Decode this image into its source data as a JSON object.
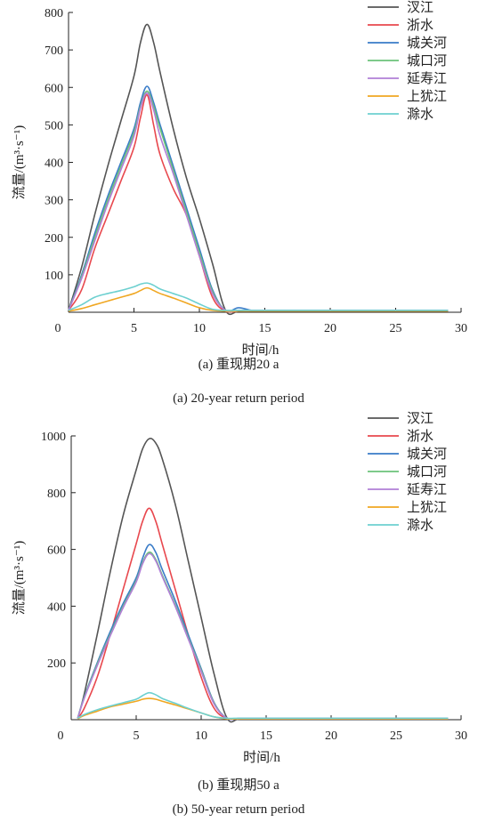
{
  "chart_data": [
    {
      "type": "line",
      "xlabel": "时间/h",
      "ylabel": "流量/(m³·s⁻¹)",
      "xlim": [
        0,
        30
      ],
      "ylim": [
        0,
        800
      ],
      "xticks": [
        "0",
        "5",
        "10",
        "15",
        "20",
        "25",
        "30"
      ],
      "yticks": [
        "100",
        "200",
        "300",
        "400",
        "500",
        "600",
        "700",
        "800"
      ],
      "legend_position": "top-right",
      "caption_cn": "(a) 重现期20 a",
      "caption_en": "(a) 20-year return period",
      "series": [
        {
          "name": "汊江",
          "color": "#555555",
          "x": [
            0,
            1,
            2,
            3,
            4,
            5,
            5.5,
            6,
            6.5,
            7,
            8,
            9,
            10,
            11,
            12,
            13,
            14,
            15,
            20,
            25,
            29
          ],
          "y": [
            5,
            120,
            260,
            390,
            510,
            630,
            720,
            768,
            720,
            640,
            490,
            360,
            250,
            130,
            5,
            3,
            3,
            3,
            3,
            3,
            3
          ]
        },
        {
          "name": "浙水",
          "color": "#e8484e",
          "x": [
            0,
            1,
            2,
            3,
            4,
            5,
            5.5,
            6,
            6.5,
            7,
            8,
            9,
            10,
            11,
            12,
            13,
            14,
            15,
            20,
            25,
            29
          ],
          "y": [
            5,
            60,
            170,
            260,
            350,
            440,
            520,
            580,
            500,
            420,
            330,
            260,
            150,
            40,
            3,
            3,
            3,
            3,
            3,
            3,
            3
          ]
        },
        {
          "name": "城关河",
          "color": "#3a7cc8",
          "x": [
            0,
            1,
            2,
            3,
            4,
            5,
            5.5,
            6,
            6.5,
            7,
            8,
            9,
            10,
            11,
            12,
            13,
            14,
            15,
            20,
            25,
            29
          ],
          "y": [
            5,
            100,
            210,
            310,
            400,
            490,
            560,
            603,
            560,
            500,
            390,
            280,
            170,
            60,
            5,
            12,
            5,
            5,
            5,
            5,
            5
          ]
        },
        {
          "name": "城口河",
          "color": "#6cc27a",
          "x": [
            0,
            1,
            2,
            3,
            4,
            5,
            5.5,
            6,
            6.5,
            7,
            8,
            9,
            10,
            11,
            12,
            13,
            14,
            15,
            20,
            25,
            29
          ],
          "y": [
            5,
            95,
            200,
            300,
            390,
            480,
            550,
            590,
            550,
            490,
            380,
            270,
            160,
            55,
            5,
            5,
            5,
            5,
            5,
            5,
            5
          ]
        },
        {
          "name": "延寿江",
          "color": "#b07fd6",
          "x": [
            0,
            1,
            2,
            3,
            4,
            5,
            5.5,
            6,
            6.5,
            7,
            8,
            9,
            10,
            11,
            12,
            13,
            14,
            15,
            20,
            25,
            29
          ],
          "y": [
            5,
            90,
            190,
            290,
            380,
            470,
            545,
            585,
            540,
            470,
            370,
            260,
            150,
            50,
            5,
            5,
            5,
            5,
            5,
            5,
            5
          ]
        },
        {
          "name": "上犹江",
          "color": "#f0a722",
          "x": [
            0,
            1,
            2,
            3,
            4,
            5,
            5.5,
            6,
            6.5,
            7,
            8,
            9,
            10,
            11,
            12,
            13,
            14,
            15,
            20,
            25,
            29
          ],
          "y": [
            3,
            10,
            20,
            30,
            40,
            50,
            58,
            65,
            58,
            50,
            38,
            25,
            12,
            5,
            3,
            3,
            3,
            3,
            3,
            3,
            3
          ]
        },
        {
          "name": "滁水",
          "color": "#6dd0d0",
          "x": [
            0,
            1,
            2,
            3,
            4,
            5,
            5.5,
            6,
            6.5,
            7,
            8,
            9,
            10,
            11,
            12,
            13,
            14,
            15,
            20,
            25,
            29
          ],
          "y": [
            5,
            20,
            40,
            50,
            58,
            68,
            75,
            78,
            72,
            62,
            50,
            38,
            22,
            8,
            5,
            5,
            5,
            5,
            5,
            5,
            5
          ]
        }
      ]
    },
    {
      "type": "line",
      "xlabel": "时间/h",
      "ylabel": "流量/(m³·s⁻¹)",
      "xlim": [
        0,
        30
      ],
      "ylim": [
        0,
        1000
      ],
      "xticks": [
        "0",
        "5",
        "10",
        "15",
        "20",
        "25",
        "30"
      ],
      "yticks": [
        "200",
        "400",
        "600",
        "800",
        "1000"
      ],
      "legend_position": "top-right",
      "caption_cn": "(b) 重现期50 a",
      "caption_en": "(b) 50-year return period",
      "series": [
        {
          "name": "汊江",
          "color": "#555555",
          "x": [
            0.5,
            1,
            2,
            3,
            4,
            5,
            5.5,
            6,
            6.5,
            7,
            8,
            9,
            10,
            11,
            12,
            13,
            15,
            20,
            25,
            29
          ],
          "y": [
            5,
            90,
            300,
            520,
            720,
            880,
            955,
            990,
            975,
            920,
            760,
            560,
            360,
            160,
            5,
            3,
            3,
            3,
            3,
            3
          ]
        },
        {
          "name": "浙水",
          "color": "#e8484e",
          "x": [
            0.5,
            1,
            2,
            3,
            4,
            5,
            5.5,
            6,
            6.5,
            7,
            8,
            9,
            10,
            11,
            12,
            13,
            15,
            20,
            25,
            29
          ],
          "y": [
            5,
            40,
            150,
            300,
            460,
            620,
            700,
            745,
            700,
            620,
            460,
            300,
            150,
            40,
            5,
            3,
            3,
            3,
            3,
            3
          ]
        },
        {
          "name": "城关河",
          "color": "#3a7cc8",
          "x": [
            0.5,
            1,
            2,
            3,
            4,
            5,
            5.5,
            6,
            6.5,
            7,
            8,
            9,
            10,
            11,
            12,
            13,
            15,
            20,
            25,
            29
          ],
          "y": [
            5,
            80,
            200,
            310,
            410,
            500,
            570,
            617,
            590,
            530,
            420,
            300,
            180,
            60,
            5,
            5,
            5,
            5,
            5,
            5
          ]
        },
        {
          "name": "城口河",
          "color": "#6cc27a",
          "x": [
            0.5,
            1,
            2,
            3,
            4,
            5,
            5.5,
            6,
            6.5,
            7,
            8,
            9,
            10,
            11,
            12,
            13,
            15,
            20,
            25,
            29
          ],
          "y": [
            5,
            78,
            195,
            300,
            400,
            490,
            555,
            590,
            565,
            510,
            405,
            290,
            175,
            58,
            5,
            5,
            5,
            5,
            5,
            5
          ]
        },
        {
          "name": "延寿江",
          "color": "#b07fd6",
          "x": [
            0.5,
            1,
            2,
            3,
            4,
            5,
            5.5,
            6,
            6.5,
            7,
            8,
            9,
            10,
            11,
            12,
            13,
            15,
            20,
            25,
            29
          ],
          "y": [
            5,
            75,
            190,
            295,
            395,
            485,
            550,
            585,
            560,
            505,
            400,
            285,
            170,
            55,
            5,
            5,
            5,
            5,
            5,
            5
          ]
        },
        {
          "name": "上犹江",
          "color": "#f0a722",
          "x": [
            0.5,
            1,
            2,
            3,
            4,
            5,
            5.5,
            6,
            6.5,
            7,
            8,
            9,
            10,
            11,
            12,
            13,
            15,
            20,
            25,
            29
          ],
          "y": [
            3,
            15,
            30,
            45,
            55,
            65,
            72,
            75,
            72,
            65,
            52,
            38,
            24,
            10,
            3,
            3,
            3,
            3,
            3,
            3
          ]
        },
        {
          "name": "滁水",
          "color": "#6dd0d0",
          "x": [
            0.5,
            1,
            2,
            3,
            4,
            5,
            5.5,
            6,
            6.5,
            7,
            8,
            9,
            10,
            11,
            12,
            13,
            15,
            20,
            25,
            29
          ],
          "y": [
            5,
            18,
            35,
            48,
            60,
            72,
            85,
            95,
            88,
            75,
            58,
            40,
            24,
            10,
            5,
            5,
            5,
            5,
            5,
            5
          ]
        }
      ]
    }
  ]
}
